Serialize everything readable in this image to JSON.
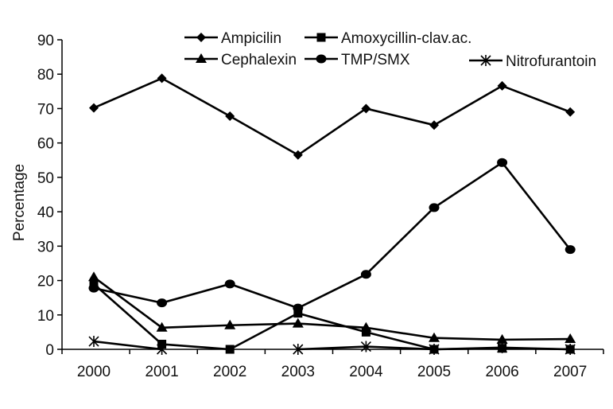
{
  "chart_data": {
    "type": "line",
    "title": "",
    "xlabel": "",
    "ylabel": "Percentage",
    "ylim": [
      0,
      90
    ],
    "yticks": [
      0,
      10,
      20,
      30,
      40,
      50,
      60,
      70,
      80,
      90
    ],
    "grid": false,
    "legend_position": "top",
    "categories": [
      "2000",
      "2001",
      "2002",
      "2003",
      "2004",
      "2005",
      "2006",
      "2007"
    ],
    "series": [
      {
        "name": "Ampicilin",
        "marker": "diamond",
        "values": [
          70.2,
          78.8,
          67.8,
          56.5,
          70.0,
          65.2,
          76.6,
          69.0
        ]
      },
      {
        "name": "Amoxycillin-clav.ac.",
        "marker": "square",
        "values": [
          19.0,
          1.5,
          0.0,
          10.5,
          5.0,
          0.0,
          0.3,
          0.0
        ]
      },
      {
        "name": "Cephalexin",
        "marker": "triangle",
        "values": [
          21.0,
          6.3,
          7.0,
          7.5,
          6.3,
          3.3,
          2.8,
          3.0
        ]
      },
      {
        "name": "TMP/SMX",
        "marker": "circle",
        "values": [
          17.8,
          13.5,
          19.0,
          12.0,
          21.8,
          41.2,
          54.3,
          29.0
        ]
      },
      {
        "name": "Nitrofurantoin",
        "marker": "asterisk",
        "values": [
          2.3,
          0.0,
          null,
          0.0,
          0.8,
          0.0,
          0.5,
          0.0
        ]
      }
    ],
    "colors": {
      "line": "#000000",
      "background": "#ffffff"
    }
  }
}
